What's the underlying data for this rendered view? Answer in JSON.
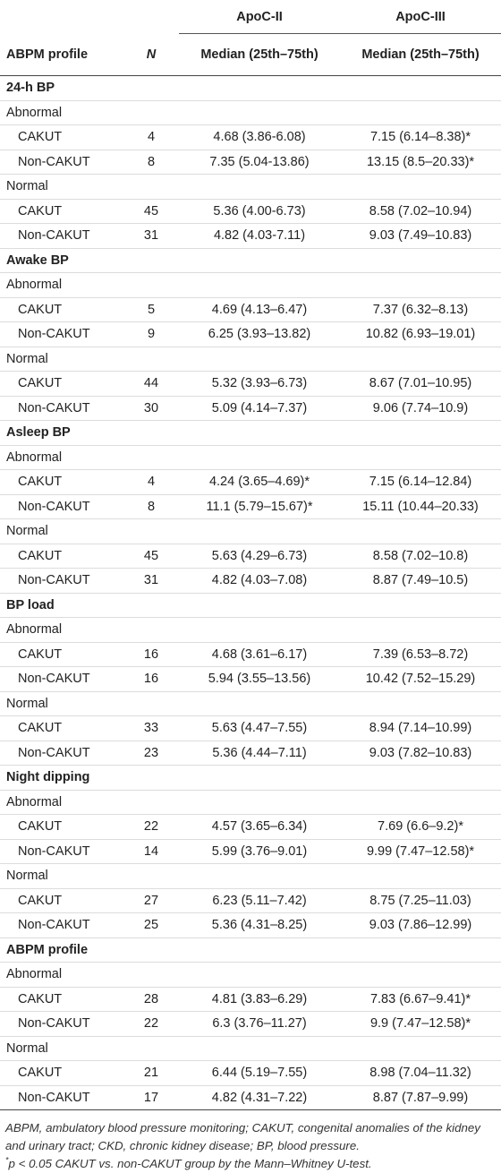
{
  "header": {
    "group1": "ApoC-II",
    "group2": "ApoC-III",
    "col_profile": "ABPM profile",
    "col_n": "N",
    "col_med1": "Median (25th–75th)",
    "col_med2": "Median (25th–75th)"
  },
  "sections": [
    {
      "title": "24-h BP",
      "groups": [
        {
          "label": "Abnormal",
          "rows": [
            {
              "name": "CAKUT",
              "n": "4",
              "apoc2": "4.68 (3.86-6.08)",
              "apoc3": "7.15 (6.14–8.38)*"
            },
            {
              "name": "Non-CAKUT",
              "n": "8",
              "apoc2": "7.35 (5.04-13.86)",
              "apoc3": "13.15 (8.5–20.33)*"
            }
          ]
        },
        {
          "label": "Normal",
          "rows": [
            {
              "name": "CAKUT",
              "n": "45",
              "apoc2": "5.36 (4.00-6.73)",
              "apoc3": "8.58 (7.02–10.94)"
            },
            {
              "name": "Non-CAKUT",
              "n": "31",
              "apoc2": "4.82 (4.03-7.11)",
              "apoc3": "9.03 (7.49–10.83)"
            }
          ]
        }
      ]
    },
    {
      "title": "Awake BP",
      "groups": [
        {
          "label": "Abnormal",
          "rows": [
            {
              "name": "CAKUT",
              "n": "5",
              "apoc2": "4.69 (4.13–6.47)",
              "apoc3": "7.37 (6.32–8.13)"
            },
            {
              "name": "Non-CAKUT",
              "n": "9",
              "apoc2": "6.25 (3.93–13.82)",
              "apoc3": "10.82 (6.93–19.01)"
            }
          ]
        },
        {
          "label": "Normal",
          "rows": [
            {
              "name": "CAKUT",
              "n": "44",
              "apoc2": "5.32 (3.93–6.73)",
              "apoc3": "8.67 (7.01–10.95)"
            },
            {
              "name": "Non-CAKUT",
              "n": "30",
              "apoc2": "5.09 (4.14–7.37)",
              "apoc3": "9.06 (7.74–10.9)"
            }
          ]
        }
      ]
    },
    {
      "title": "Asleep BP",
      "groups": [
        {
          "label": "Abnormal",
          "rows": [
            {
              "name": "CAKUT",
              "n": "4",
              "apoc2": "4.24 (3.65–4.69)*",
              "apoc3": "7.15 (6.14–12.84)"
            },
            {
              "name": "Non-CAKUT",
              "n": "8",
              "apoc2": "11.1 (5.79–15.67)*",
              "apoc3": "15.11 (10.44–20.33)"
            }
          ]
        },
        {
          "label": "Normal",
          "rows": [
            {
              "name": "CAKUT",
              "n": "45",
              "apoc2": "5.63 (4.29–6.73)",
              "apoc3": "8.58 (7.02–10.8)"
            },
            {
              "name": "Non-CAKUT",
              "n": "31",
              "apoc2": "4.82 (4.03–7.08)",
              "apoc3": "8.87 (7.49–10.5)"
            }
          ]
        }
      ]
    },
    {
      "title": "BP load",
      "groups": [
        {
          "label": "Abnormal",
          "rows": [
            {
              "name": "CAKUT",
              "n": "16",
              "apoc2": "4.68 (3.61–6.17)",
              "apoc3": "7.39 (6.53–8.72)"
            },
            {
              "name": "Non-CAKUT",
              "n": "16",
              "apoc2": "5.94 (3.55–13.56)",
              "apoc3": "10.42 (7.52–15.29)"
            }
          ]
        },
        {
          "label": "Normal",
          "rows": [
            {
              "name": "CAKUT",
              "n": "33",
              "apoc2": "5.63 (4.47–7.55)",
              "apoc3": "8.94 (7.14–10.99)"
            },
            {
              "name": "Non-CAKUT",
              "n": "23",
              "apoc2": "5.36 (4.44–7.11)",
              "apoc3": "9.03 (7.82–10.83)"
            }
          ]
        }
      ]
    },
    {
      "title": "Night dipping",
      "groups": [
        {
          "label": "Abnormal",
          "rows": [
            {
              "name": "CAKUT",
              "n": "22",
              "apoc2": "4.57 (3.65–6.34)",
              "apoc3": "7.69 (6.6–9.2)*"
            },
            {
              "name": "Non-CAKUT",
              "n": "14",
              "apoc2": "5.99 (3.76–9.01)",
              "apoc3": "9.99 (7.47–12.58)*"
            }
          ]
        },
        {
          "label": "Normal",
          "rows": [
            {
              "name": "CAKUT",
              "n": "27",
              "apoc2": "6.23 (5.11–7.42)",
              "apoc3": "8.75 (7.25–11.03)"
            },
            {
              "name": "Non-CAKUT",
              "n": "25",
              "apoc2": "5.36 (4.31–8.25)",
              "apoc3": "9.03 (7.86–12.99)"
            }
          ]
        }
      ]
    },
    {
      "title": "ABPM profile",
      "groups": [
        {
          "label": "Abnormal",
          "rows": [
            {
              "name": "CAKUT",
              "n": "28",
              "apoc2": "4.81 (3.83–6.29)",
              "apoc3": "7.83 (6.67–9.41)*"
            },
            {
              "name": "Non-CAKUT",
              "n": "22",
              "apoc2": "6.3 (3.76–11.27)",
              "apoc3": "9.9 (7.47–12.58)*"
            }
          ]
        },
        {
          "label": "Normal",
          "rows": [
            {
              "name": "CAKUT",
              "n": "21",
              "apoc2": "6.44 (5.19–7.55)",
              "apoc3": "8.98 (7.04–11.32)"
            },
            {
              "name": "Non-CAKUT",
              "n": "17",
              "apoc2": "4.82 (4.31–7.22)",
              "apoc3": "8.87 (7.87–9.99)"
            }
          ]
        }
      ]
    }
  ],
  "footnotes": {
    "abbrev": "ABPM, ambulatory blood pressure monitoring; CAKUT, congenital anomalies of the kidney and urinary tract; CKD, chronic kidney disease; BP, blood pressure.",
    "sig_mark": "*",
    "sig_text": "p < 0.05 CAKUT vs. non-CAKUT group by the Mann–Whitney U-test."
  }
}
